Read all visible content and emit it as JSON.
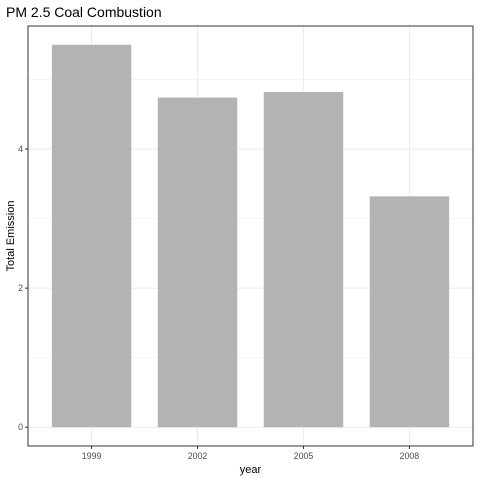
{
  "chart_data": {
    "type": "bar",
    "title": "PM 2.5 Coal Combustion",
    "xlabel": "year",
    "ylabel": "Total Emission",
    "categories": [
      "1999",
      "2002",
      "2005",
      "2008"
    ],
    "values": [
      5.5,
      4.74,
      4.82,
      3.32
    ],
    "ylim": [
      -0.27,
      5.77
    ],
    "yticks": [
      0,
      2,
      4
    ],
    "grid": true,
    "legend": "none",
    "bar_color": "#b3b3b3",
    "panel_border_color": "#333333",
    "grid_color": "#ebebeb"
  }
}
